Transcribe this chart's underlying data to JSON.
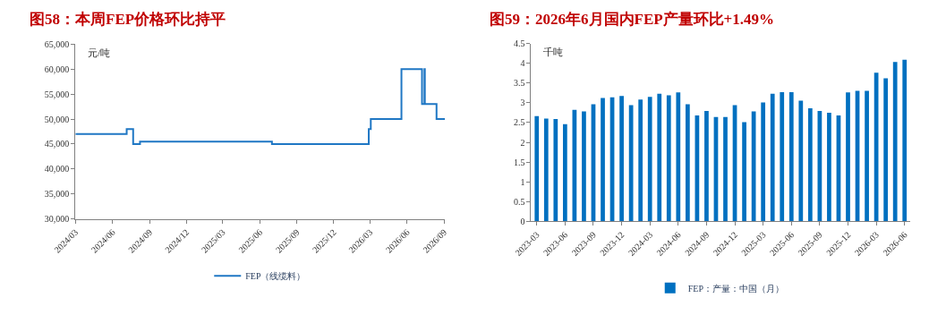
{
  "chart_data": [
    {
      "type": "step",
      "title": "图58：本周FEP价格环比持平",
      "ylabel": "元/吨",
      "series": [
        {
          "name": "FEP（线缆料）",
          "color": "#1f77c4",
          "x": [
            "2024-03-01",
            "2024-07-06",
            "2024-07-22",
            "2024-08-08",
            "2025-07-01",
            "2026-02-26",
            "2026-03-03",
            "2026-05-18",
            "2026-07-08",
            "2026-07-14",
            "2026-07-15",
            "2026-08-13",
            "2026-09-03"
          ],
          "values": [
            47000,
            48000,
            45000,
            45500,
            45000,
            48000,
            50000,
            60000,
            53000,
            60000,
            53000,
            50000,
            50000
          ]
        }
      ],
      "xlim": [
        "2024-03-01",
        "2026-09-03"
      ],
      "xticks": [
        {
          "value": "2024-03-01",
          "label": "2024/03"
        },
        {
          "value": "2024-06-01",
          "label": "2024/06"
        },
        {
          "value": "2024-09-01",
          "label": "2024/09"
        },
        {
          "value": "2024-12-01",
          "label": "2024/12"
        },
        {
          "value": "2025-03-01",
          "label": "2025/03"
        },
        {
          "value": "2025-06-01",
          "label": "2025/06"
        },
        {
          "value": "2025-09-01",
          "label": "2025/09"
        },
        {
          "value": "2025-12-01",
          "label": "2025/12"
        },
        {
          "value": "2026-03-01",
          "label": "2026/03"
        },
        {
          "value": "2026-06-01",
          "label": "2026/06"
        },
        {
          "value": "2026-09-01",
          "label": "2026/09"
        }
      ],
      "ylim": [
        30000,
        65000
      ],
      "yticks": [
        {
          "value": 30000,
          "label": "30,000"
        },
        {
          "value": 35000,
          "label": "35,000"
        },
        {
          "value": 40000,
          "label": "40,000"
        },
        {
          "value": 45000,
          "label": "45,000"
        },
        {
          "value": 50000,
          "label": "50,000"
        },
        {
          "value": 55000,
          "label": "55,000"
        },
        {
          "value": 60000,
          "label": "60,000"
        },
        {
          "value": 65000,
          "label": "65,000"
        }
      ],
      "grid": false,
      "legend": "bottom",
      "marker": "none",
      "line_style": "solid"
    },
    {
      "type": "bar",
      "title": "图59：2026年6月国内FEP产量环比+1.49%",
      "ylabel": "千吨",
      "categories": [
        "2023-03",
        null,
        null,
        "2023-06",
        null,
        null,
        "2023-09",
        null,
        null,
        "2023-12",
        null,
        null,
        "2024-03",
        null,
        null,
        "2024-06",
        null,
        null,
        "2024-09",
        null,
        null,
        "2024-12",
        null,
        null,
        "2025-03",
        null,
        null,
        "2025-06",
        null,
        null,
        "2025-09",
        null,
        null,
        "2025-12",
        null,
        null,
        "2026-03",
        null,
        null,
        "2026-06"
      ],
      "series": [
        {
          "name": "FEP：产量：中国（月）",
          "color": "#0070c0",
          "values": [
            2.66,
            2.6,
            2.59,
            2.46,
            2.82,
            2.78,
            2.96,
            3.12,
            3.14,
            3.17,
            2.94,
            3.08,
            3.15,
            3.23,
            3.19,
            3.26,
            2.96,
            2.68,
            2.79,
            2.64,
            2.64,
            2.94,
            2.51,
            2.78,
            3.01,
            3.23,
            3.27,
            3.27,
            3.05,
            2.86,
            2.79,
            2.75,
            2.68,
            3.26,
            3.3,
            3.3,
            3.76,
            3.62,
            4.03,
            4.09
          ]
        }
      ],
      "ylim": [
        0,
        4.5
      ],
      "yticks": [
        0,
        0.5,
        1,
        1.5,
        2,
        2.5,
        3,
        3.5,
        4,
        4.5
      ],
      "grid": false,
      "legend": "bottom"
    }
  ]
}
